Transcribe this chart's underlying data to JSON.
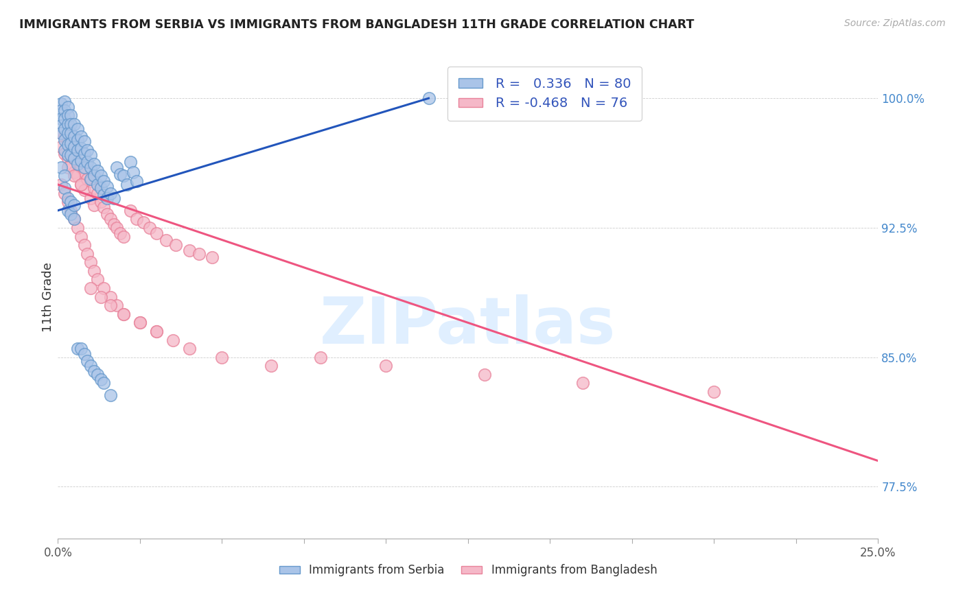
{
  "title": "IMMIGRANTS FROM SERBIA VS IMMIGRANTS FROM BANGLADESH 11TH GRADE CORRELATION CHART",
  "source": "Source: ZipAtlas.com",
  "ylabel": "11th Grade",
  "xlim": [
    0.0,
    0.25
  ],
  "ylim": [
    0.745,
    1.025
  ],
  "serbia_color": "#aac4e8",
  "serbia_edge": "#6699cc",
  "bangladesh_color": "#f5b8c8",
  "bangladesh_edge": "#e8829a",
  "serbia_line_color": "#2255bb",
  "bangladesh_line_color": "#ee5580",
  "watermark": "ZIPatlas",
  "serbia_R": 0.336,
  "serbia_N": 80,
  "bangladesh_R": -0.468,
  "bangladesh_N": 76,
  "serbia_line_x0": 0.0,
  "serbia_line_y0": 0.935,
  "serbia_line_x1": 0.113,
  "serbia_line_y1": 1.0,
  "bangladesh_line_x0": 0.0,
  "bangladesh_line_y0": 0.95,
  "bangladesh_line_x1": 0.25,
  "bangladesh_line_y1": 0.79,
  "serbia_x": [
    0.001,
    0.001,
    0.001,
    0.001,
    0.001,
    0.002,
    0.002,
    0.002,
    0.002,
    0.002,
    0.002,
    0.003,
    0.003,
    0.003,
    0.003,
    0.003,
    0.003,
    0.004,
    0.004,
    0.004,
    0.004,
    0.004,
    0.005,
    0.005,
    0.005,
    0.005,
    0.006,
    0.006,
    0.006,
    0.006,
    0.007,
    0.007,
    0.007,
    0.008,
    0.008,
    0.008,
    0.009,
    0.009,
    0.01,
    0.01,
    0.01,
    0.011,
    0.011,
    0.012,
    0.012,
    0.013,
    0.013,
    0.014,
    0.014,
    0.015,
    0.015,
    0.016,
    0.017,
    0.018,
    0.019,
    0.02,
    0.021,
    0.022,
    0.023,
    0.024,
    0.001,
    0.002,
    0.002,
    0.003,
    0.003,
    0.004,
    0.004,
    0.005,
    0.005,
    0.006,
    0.007,
    0.008,
    0.009,
    0.01,
    0.011,
    0.012,
    0.013,
    0.014,
    0.016,
    0.113
  ],
  "serbia_y": [
    0.997,
    0.993,
    0.988,
    0.984,
    0.98,
    0.998,
    0.993,
    0.988,
    0.982,
    0.976,
    0.97,
    0.995,
    0.99,
    0.985,
    0.98,
    0.973,
    0.967,
    0.99,
    0.985,
    0.98,
    0.974,
    0.967,
    0.985,
    0.978,
    0.972,
    0.965,
    0.982,
    0.976,
    0.97,
    0.962,
    0.978,
    0.971,
    0.964,
    0.975,
    0.968,
    0.96,
    0.97,
    0.963,
    0.967,
    0.96,
    0.953,
    0.962,
    0.955,
    0.958,
    0.95,
    0.955,
    0.948,
    0.952,
    0.944,
    0.949,
    0.942,
    0.945,
    0.942,
    0.96,
    0.956,
    0.955,
    0.95,
    0.963,
    0.957,
    0.952,
    0.96,
    0.955,
    0.948,
    0.942,
    0.935,
    0.94,
    0.933,
    0.938,
    0.93,
    0.855,
    0.855,
    0.852,
    0.848,
    0.845,
    0.842,
    0.84,
    0.837,
    0.835,
    0.828,
    1.0
  ],
  "bangladesh_x": [
    0.001,
    0.001,
    0.002,
    0.002,
    0.003,
    0.003,
    0.004,
    0.004,
    0.005,
    0.005,
    0.006,
    0.006,
    0.007,
    0.007,
    0.008,
    0.008,
    0.009,
    0.01,
    0.01,
    0.011,
    0.011,
    0.012,
    0.013,
    0.014,
    0.015,
    0.016,
    0.017,
    0.018,
    0.019,
    0.02,
    0.022,
    0.024,
    0.026,
    0.028,
    0.03,
    0.033,
    0.036,
    0.04,
    0.043,
    0.047,
    0.001,
    0.002,
    0.003,
    0.004,
    0.005,
    0.006,
    0.007,
    0.008,
    0.009,
    0.01,
    0.011,
    0.012,
    0.014,
    0.016,
    0.018,
    0.02,
    0.025,
    0.03,
    0.035,
    0.04,
    0.003,
    0.005,
    0.007,
    0.01,
    0.013,
    0.016,
    0.02,
    0.025,
    0.03,
    0.05,
    0.065,
    0.08,
    0.1,
    0.13,
    0.16,
    0.2
  ],
  "bangladesh_y": [
    0.98,
    0.972,
    0.978,
    0.968,
    0.975,
    0.965,
    0.97,
    0.962,
    0.967,
    0.957,
    0.963,
    0.955,
    0.96,
    0.95,
    0.957,
    0.947,
    0.953,
    0.952,
    0.942,
    0.948,
    0.938,
    0.945,
    0.94,
    0.937,
    0.933,
    0.93,
    0.927,
    0.925,
    0.922,
    0.92,
    0.935,
    0.93,
    0.928,
    0.925,
    0.922,
    0.918,
    0.915,
    0.912,
    0.91,
    0.908,
    0.95,
    0.945,
    0.94,
    0.935,
    0.93,
    0.925,
    0.92,
    0.915,
    0.91,
    0.905,
    0.9,
    0.895,
    0.89,
    0.885,
    0.88,
    0.875,
    0.87,
    0.865,
    0.86,
    0.855,
    0.96,
    0.955,
    0.95,
    0.89,
    0.885,
    0.88,
    0.875,
    0.87,
    0.865,
    0.85,
    0.845,
    0.85,
    0.845,
    0.84,
    0.835,
    0.83
  ]
}
